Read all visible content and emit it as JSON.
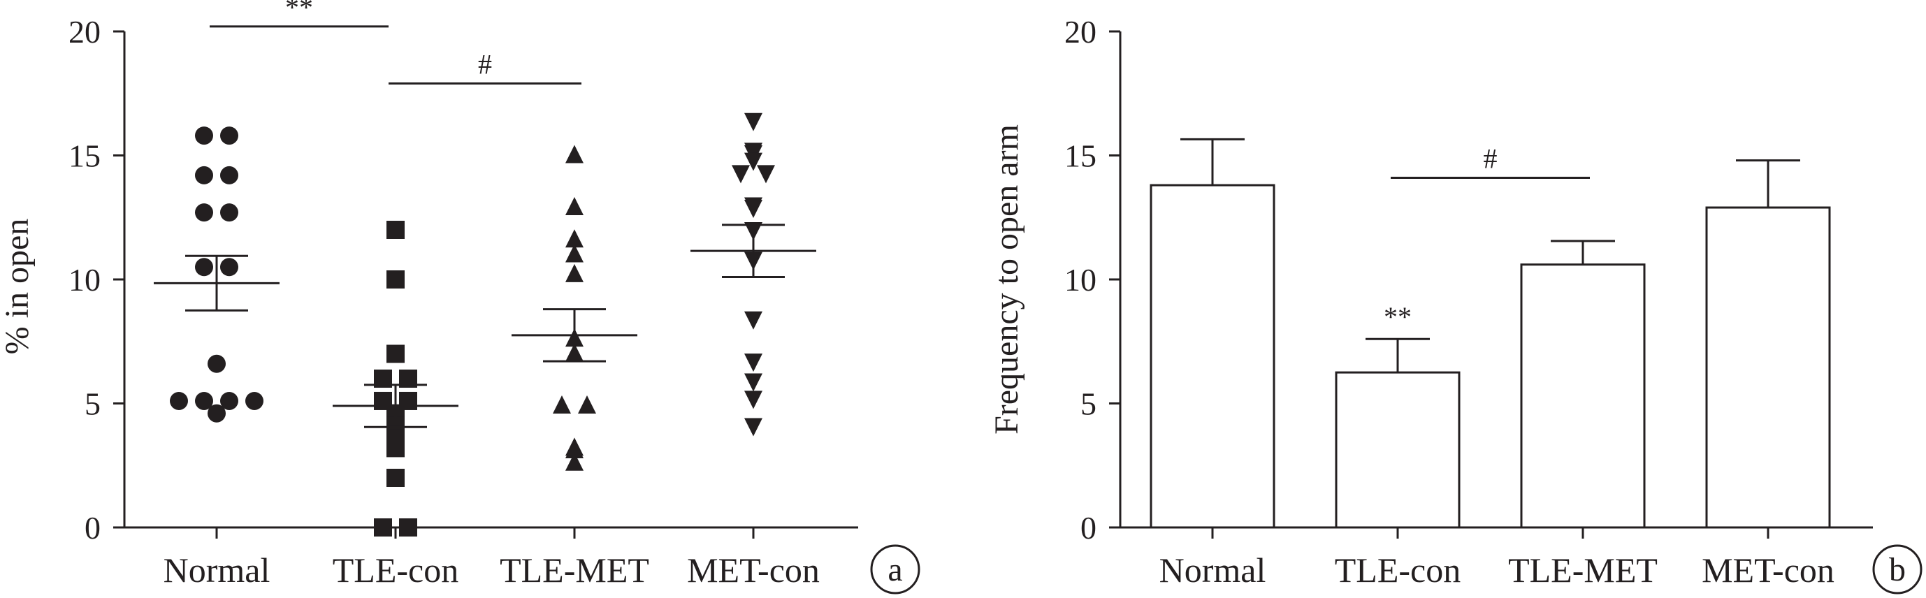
{
  "chart_data": [
    {
      "panel": "a",
      "type": "scatter",
      "ylabel": "% in open",
      "ylim": [
        0,
        20
      ],
      "yticks": [
        "0",
        "5",
        "10",
        "15",
        "20"
      ],
      "categories": [
        "Normal",
        "TLE-con",
        "TLE-MET",
        "MET-con"
      ],
      "markers": [
        "circle",
        "square",
        "triangle-up",
        "triangle-down"
      ],
      "points": [
        [
          15.8,
          15.8,
          14.2,
          14.2,
          12.7,
          12.7,
          10.5,
          10.5,
          6.6,
          5.1,
          5.1,
          5.1,
          5.1,
          4.6
        ],
        [
          12.0,
          10.0,
          7.0,
          6.0,
          6.0,
          5.1,
          5.1,
          4.6,
          4.1,
          3.6,
          3.2,
          2.0,
          0.0,
          0.0
        ],
        [
          15.0,
          12.9,
          11.6,
          11.0,
          10.2,
          7.6,
          7.0,
          4.9,
          4.9,
          3.2,
          3.1,
          2.6
        ],
        [
          16.4,
          15.2,
          15.1,
          14.8,
          14.3,
          14.3,
          13.0,
          12.9,
          12.0,
          10.8,
          8.4,
          6.7,
          5.9,
          5.2,
          4.1
        ]
      ],
      "means": [
        9.85,
        4.9,
        7.75,
        11.15
      ],
      "sems": [
        1.1,
        0.85,
        1.05,
        1.05
      ],
      "brackets": [
        {
          "from": 0,
          "to": 1,
          "y": 20.2,
          "label": "**"
        },
        {
          "from": 1,
          "to": 2,
          "y": 17.9,
          "label": "#"
        }
      ]
    },
    {
      "panel": "b",
      "type": "bar",
      "ylabel": "Frequency to open arm",
      "ylim": [
        0,
        20
      ],
      "yticks": [
        "0",
        "5",
        "10",
        "15",
        "20"
      ],
      "categories": [
        "Normal",
        "TLE-con",
        "TLE-MET",
        "MET-con"
      ],
      "values": [
        13.8,
        6.25,
        10.6,
        12.9
      ],
      "errors": [
        1.85,
        1.35,
        0.95,
        1.9
      ],
      "bar_annotations": [
        {
          "index": 1,
          "label": "**"
        }
      ],
      "brackets": [
        {
          "from": 1,
          "to": 2,
          "y": 14.1,
          "label": "#"
        }
      ]
    }
  ]
}
